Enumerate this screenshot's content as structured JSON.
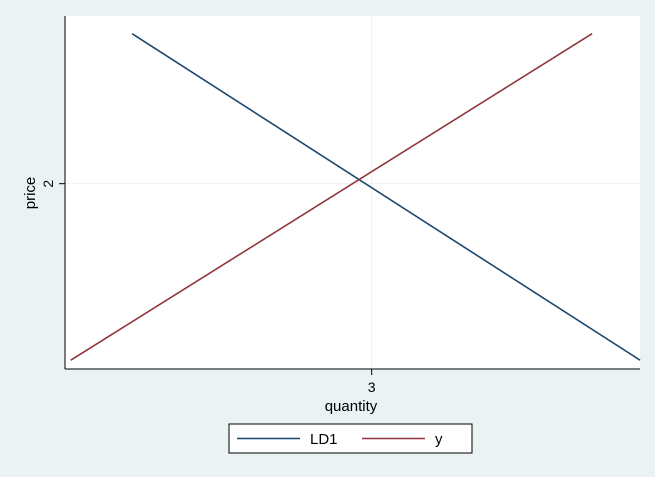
{
  "chart_data": {
    "type": "line",
    "xlabel": "quantity",
    "ylabel": "price",
    "xlim": [
      1.4,
      4.4
    ],
    "ylim": [
      0.95,
      2.95
    ],
    "x_ticks": [
      3
    ],
    "y_ticks": [
      2
    ],
    "grid": true,
    "legend_position": "bottom",
    "series": [
      {
        "name": "LD1",
        "color": "#1a476f",
        "x": [
          1.75,
          4.4
        ],
        "y": [
          2.85,
          1.0
        ]
      },
      {
        "name": "y",
        "color": "#90353b",
        "x": [
          1.43,
          4.15
        ],
        "y": [
          1.0,
          2.85
        ]
      }
    ]
  },
  "colors": {
    "background": "#eaf2f3",
    "plot_background": "#ffffff",
    "grid": "#eaf2f3",
    "axis": "#000000"
  }
}
